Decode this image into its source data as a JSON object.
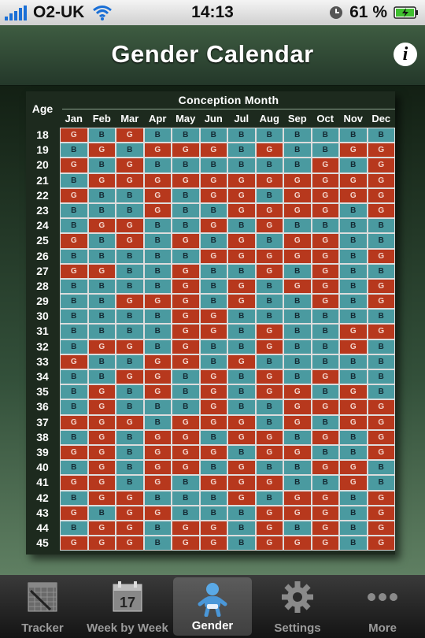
{
  "status_bar": {
    "carrier": "O2-UK",
    "time": "14:13",
    "battery_percent": "61 %"
  },
  "header": {
    "title": "Gender Calendar",
    "info_label": "i"
  },
  "chart": {
    "age_header": "Age",
    "conception_header": "Conception Month",
    "months": [
      "Jan",
      "Feb",
      "Mar",
      "Apr",
      "May",
      "Jun",
      "Jul",
      "Aug",
      "Sep",
      "Oct",
      "Nov",
      "Dec"
    ],
    "ages": [
      "18",
      "19",
      "20",
      "21",
      "22",
      "23",
      "24",
      "25",
      "26",
      "27",
      "28",
      "29",
      "30",
      "31",
      "32",
      "33",
      "34",
      "35",
      "36",
      "37",
      "38",
      "39",
      "40",
      "41",
      "42",
      "43",
      "44",
      "45"
    ],
    "rows": [
      "GBGBBBBBBBBB",
      "BGBGGGBGBBGG",
      "GBGBBBBBBGBG",
      "BGGGGGGGGGGG",
      "GBBGBGGBGGGG",
      "BBBGBBGGGGBG",
      "BGGBBGBGBBBB",
      "GBGBGBGBGGBB",
      "BBBBBGGGGGBG",
      "GGBBGBBGBGBB",
      "BBBBGBGBGGBG",
      "BBGGGBGBBGBG",
      "BBBBGGBBBBBB",
      "BBBBGGBGBBGG",
      "BGGBGBBGBBGB",
      "GBBGGBGBBBBB",
      "BBGGBGBGBGBB",
      "BGBGBGBGGBGB",
      "BGBBBGBBGGGG",
      "GGGBGGGBGBGG",
      "BGBGGBGGBGBG",
      "GGBGGGBGGBBG",
      "BGBGGBGBBGGB",
      "GGBGBGGGBBGB",
      "BGGBBBGBGGBG",
      "GBGGBBBGGGBG",
      "BGGBGGBGBGBG",
      "GGGBGGBGGGBG"
    ]
  },
  "tabs": [
    {
      "label": "Tracker",
      "icon": "tracker-icon",
      "active": false
    },
    {
      "label": "Week by Week",
      "icon": "calendar-icon",
      "calendar_day": "17",
      "active": false
    },
    {
      "label": "Gender",
      "icon": "baby-icon",
      "active": true
    },
    {
      "label": "Settings",
      "icon": "gear-icon",
      "active": false
    },
    {
      "label": "More",
      "icon": "more-dots-icon",
      "active": false
    }
  ]
}
